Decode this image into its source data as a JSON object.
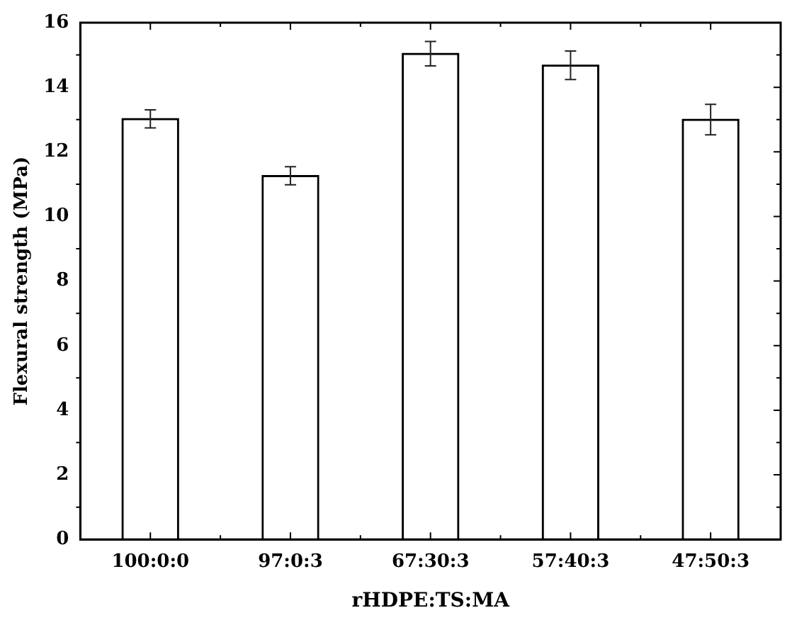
{
  "chart_data": {
    "type": "bar",
    "xlabel": "rHDPE:TS:MA",
    "ylabel": "Flexural strength (MPa)",
    "categories": [
      "100:0:0",
      "97:0:3",
      "67:30:3",
      "57:40:3",
      "47:50:3"
    ],
    "values": [
      13.02,
      11.26,
      15.04,
      14.68,
      13.0
    ],
    "errors": [
      0.28,
      0.28,
      0.38,
      0.44,
      0.47
    ],
    "color": "#ffffff",
    "ylim": [
      0,
      16
    ],
    "yticks": [
      0,
      2,
      4,
      6,
      8,
      10,
      12,
      14,
      16
    ],
    "grid": false,
    "legend": false
  }
}
